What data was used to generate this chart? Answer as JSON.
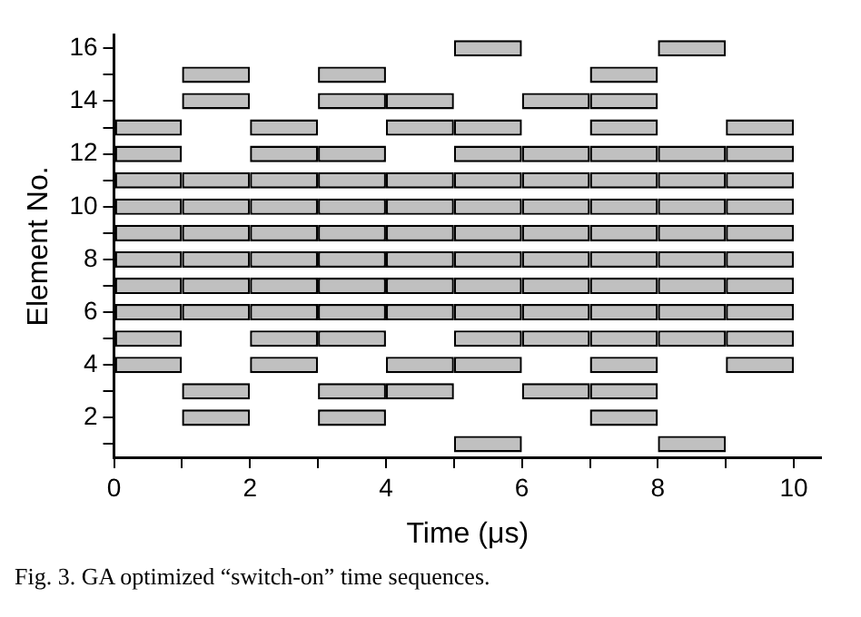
{
  "chart_data": {
    "type": "bar",
    "orientation": "horizontal",
    "xlabel": "Time (μs)",
    "ylabel": "Element No.",
    "annotations": [
      "Fig. 3. GA optimized “switch-on” time sequences."
    ],
    "categories": [
      "16",
      null,
      "14",
      null,
      "12",
      null,
      "10",
      null,
      "8",
      null,
      "6",
      null,
      "4",
      null,
      "2",
      null
    ],
    "xlim": [
      0,
      10.4
    ],
    "xticks": [
      0,
      {
        "value": 1,
        "label": null
      },
      2,
      {
        "value": 3,
        "label": null
      },
      4,
      {
        "value": 5,
        "label": null
      },
      6,
      {
        "value": 7,
        "label": null
      },
      8,
      {
        "value": 9,
        "label": null
      },
      10
    ],
    "grid": false,
    "legend": false,
    "series": [
      {
        "color": "#c0c0c0",
        "base": [
          null,
          null,
          null,
          0,
          0,
          0,
          0,
          0,
          0,
          0,
          0,
          0,
          0,
          null,
          null,
          null
        ],
        "values": [
          null,
          null,
          null,
          1,
          1,
          1,
          1,
          1,
          1,
          1,
          1,
          1,
          1,
          null,
          null,
          null
        ]
      },
      {
        "color": "#c0c0c0",
        "base": [
          null,
          1,
          1,
          null,
          null,
          1,
          1,
          1,
          1,
          1,
          1,
          null,
          null,
          1,
          1,
          null
        ],
        "values": [
          null,
          1,
          1,
          null,
          null,
          1,
          1,
          1,
          1,
          1,
          1,
          null,
          null,
          1,
          1,
          null
        ]
      },
      {
        "color": "#c0c0c0",
        "base": [
          null,
          null,
          null,
          2,
          2,
          2,
          2,
          2,
          2,
          2,
          2,
          2,
          2,
          null,
          null,
          null
        ],
        "values": [
          null,
          null,
          null,
          1,
          1,
          1,
          1,
          1,
          1,
          1,
          1,
          1,
          1,
          null,
          null,
          null
        ]
      },
      {
        "color": "#c0c0c0",
        "base": [
          null,
          3,
          3,
          null,
          3,
          3,
          3,
          3,
          3,
          3,
          3,
          3,
          null,
          3,
          3,
          null
        ],
        "values": [
          null,
          1,
          1,
          null,
          1,
          1,
          1,
          1,
          1,
          1,
          1,
          1,
          null,
          1,
          1,
          null
        ]
      },
      {
        "color": "#c0c0c0",
        "base": [
          null,
          null,
          4,
          4,
          null,
          4,
          4,
          4,
          4,
          4,
          4,
          null,
          4,
          4,
          null,
          null
        ],
        "values": [
          null,
          null,
          1,
          1,
          null,
          1,
          1,
          1,
          1,
          1,
          1,
          null,
          1,
          1,
          null,
          null
        ]
      },
      {
        "color": "#c0c0c0",
        "base": [
          5,
          null,
          null,
          5,
          5,
          5,
          5,
          5,
          5,
          5,
          5,
          5,
          5,
          null,
          null,
          5
        ],
        "values": [
          1,
          null,
          null,
          1,
          1,
          1,
          1,
          1,
          1,
          1,
          1,
          1,
          1,
          null,
          null,
          1
        ]
      },
      {
        "color": "#c0c0c0",
        "base": [
          null,
          null,
          6,
          null,
          6,
          6,
          6,
          6,
          6,
          6,
          6,
          6,
          null,
          6,
          null,
          null
        ],
        "values": [
          null,
          null,
          1,
          null,
          1,
          1,
          1,
          1,
          1,
          1,
          1,
          1,
          null,
          1,
          null,
          null
        ]
      },
      {
        "color": "#c0c0c0",
        "base": [
          null,
          7,
          7,
          7,
          7,
          7,
          7,
          7,
          7,
          7,
          7,
          7,
          7,
          7,
          7,
          null
        ],
        "values": [
          null,
          1,
          1,
          1,
          1,
          1,
          1,
          1,
          1,
          1,
          1,
          1,
          1,
          1,
          1,
          null
        ]
      },
      {
        "color": "#c0c0c0",
        "base": [
          8,
          null,
          null,
          null,
          8,
          8,
          8,
          8,
          8,
          8,
          8,
          8,
          null,
          null,
          null,
          8
        ],
        "values": [
          1,
          null,
          null,
          null,
          1,
          1,
          1,
          1,
          1,
          1,
          1,
          1,
          null,
          null,
          null,
          1
        ]
      },
      {
        "color": "#c0c0c0",
        "base": [
          null,
          null,
          null,
          9,
          9,
          9,
          9,
          9,
          9,
          9,
          9,
          9,
          9,
          null,
          null,
          null
        ],
        "values": [
          null,
          null,
          null,
          1,
          1,
          1,
          1,
          1,
          1,
          1,
          1,
          1,
          1,
          null,
          null,
          null
        ]
      }
    ]
  }
}
